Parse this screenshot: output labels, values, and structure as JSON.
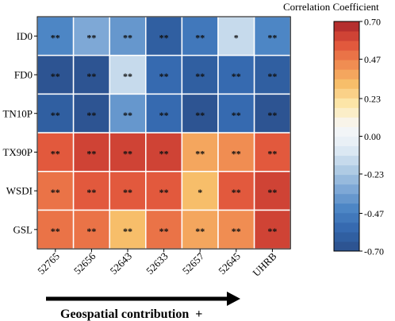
{
  "chart_data": {
    "type": "heatmap",
    "rows": [
      "ID0",
      "FD0",
      "TN10P",
      "TX90P",
      "WSDI",
      "GSL"
    ],
    "columns": [
      "52765",
      "52656",
      "52643",
      "52633",
      "52657",
      "52645",
      "UHRB"
    ],
    "values": [
      [
        -0.45,
        -0.35,
        -0.4,
        -0.62,
        -0.5,
        -0.15,
        -0.42
      ],
      [
        -0.65,
        -0.65,
        -0.15,
        -0.55,
        -0.6,
        -0.55,
        -0.6
      ],
      [
        -0.62,
        -0.7,
        -0.4,
        -0.55,
        -0.7,
        -0.55,
        -0.7
      ],
      [
        0.55,
        0.62,
        0.63,
        0.6,
        0.38,
        0.43,
        0.55
      ],
      [
        0.52,
        0.58,
        0.58,
        0.56,
        0.3,
        0.55,
        0.6
      ],
      [
        0.52,
        0.5,
        0.35,
        0.5,
        0.36,
        0.45,
        0.62
      ]
    ],
    "significance": [
      [
        "**",
        "**",
        "**",
        "**",
        "**",
        "*",
        "**"
      ],
      [
        "**",
        "**",
        "**",
        "**",
        "**",
        "**",
        "**"
      ],
      [
        "**",
        "**",
        "**",
        "**",
        "**",
        "**",
        "**"
      ],
      [
        "**",
        "**",
        "**",
        "**",
        "**",
        "**",
        "**"
      ],
      [
        "**",
        "**",
        "**",
        "**",
        "*",
        "**",
        "**"
      ],
      [
        "**",
        "**",
        "**",
        "**",
        "**",
        "**",
        "**"
      ]
    ],
    "colorbar": {
      "title": "Correlation Coefficient",
      "range": [
        -0.7,
        0.7
      ],
      "tick_values": [
        0.7,
        0.47,
        0.23,
        0.0,
        -0.23,
        -0.47,
        -0.7
      ],
      "tick_labels": [
        "0.70",
        "0.47",
        "0.23",
        "0.00",
        "-0.23",
        "-0.47",
        "-0.70"
      ],
      "levels": 24,
      "colors_low_to_high": [
        "#2b4f8a",
        "#3266ac",
        "#4a84c4",
        "#7fa9d6",
        "#b5cfe6",
        "#e4eef6",
        "#f7f7f7",
        "#fde9ae",
        "#f7bf6b",
        "#f08a50",
        "#e0513a",
        "#a8252a"
      ]
    },
    "arrow_label": "Geospatial contribution  +",
    "grid_color": "#ffffff"
  }
}
